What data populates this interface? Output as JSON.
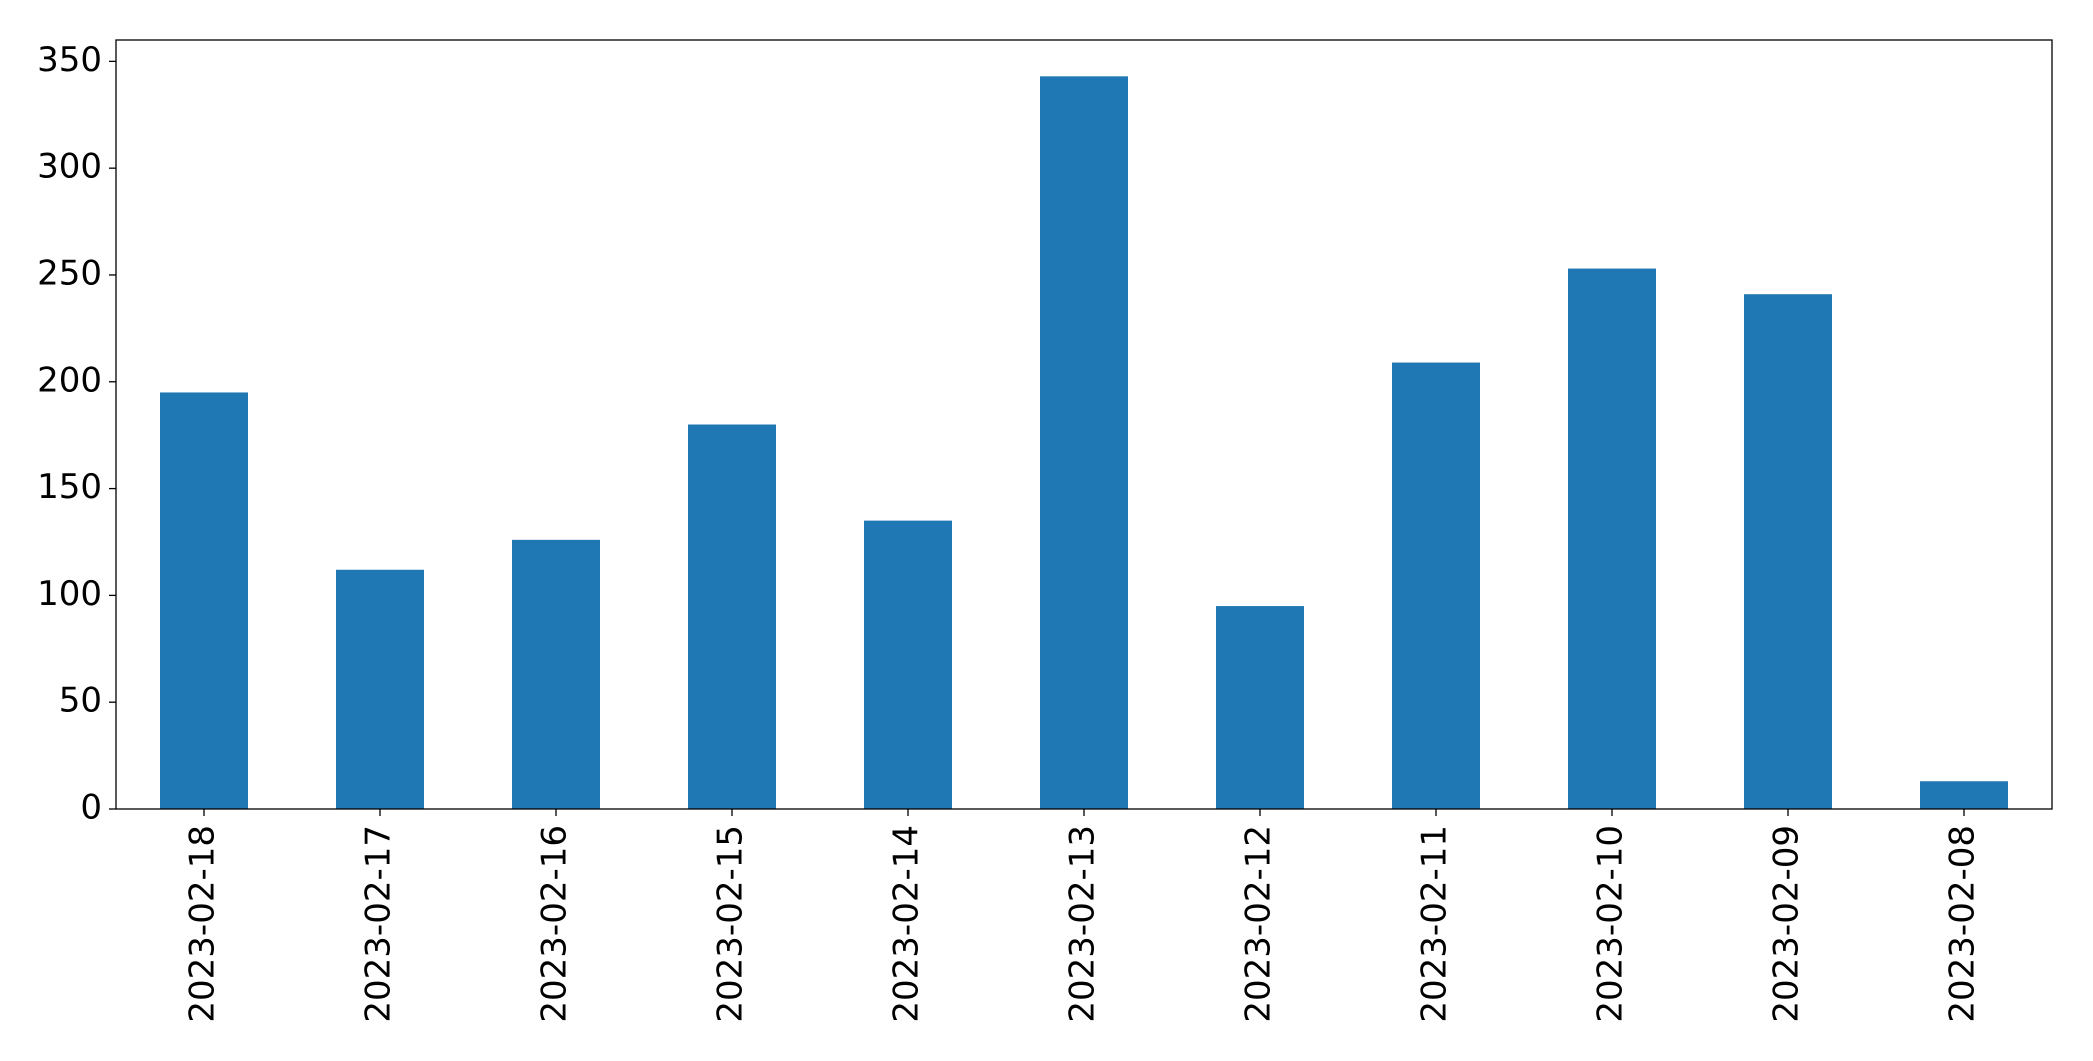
{
  "chart_data": {
    "type": "bar",
    "categories": [
      "2023-02-18",
      "2023-02-17",
      "2023-02-16",
      "2023-02-15",
      "2023-02-14",
      "2023-02-13",
      "2023-02-12",
      "2023-02-11",
      "2023-02-10",
      "2023-02-09",
      "2023-02-08"
    ],
    "values": [
      195,
      112,
      126,
      180,
      135,
      343,
      95,
      209,
      253,
      241,
      13
    ],
    "color": "#1f77b4",
    "ylim": [
      0,
      360
    ],
    "yticks": [
      0,
      50,
      100,
      150,
      200,
      250,
      300,
      350
    ],
    "grid": false
  }
}
